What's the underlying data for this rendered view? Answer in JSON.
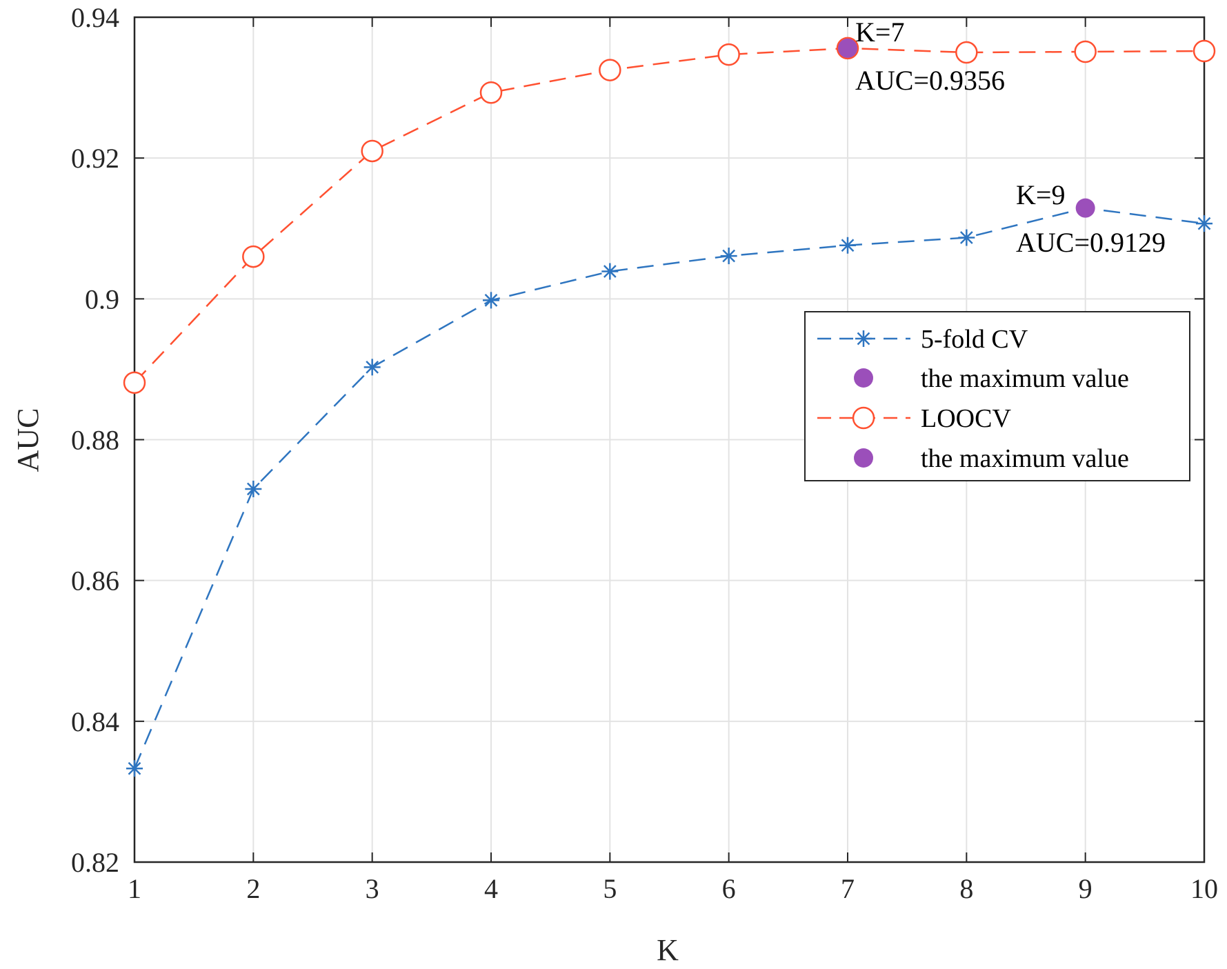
{
  "chart_data": {
    "type": "line",
    "title": "",
    "xlabel": "K",
    "ylabel": "AUC",
    "x": [
      1,
      2,
      3,
      4,
      5,
      6,
      7,
      8,
      9,
      10
    ],
    "xlim": [
      1,
      10
    ],
    "ylim": [
      0.82,
      0.94
    ],
    "xticks": [
      "1",
      "2",
      "3",
      "4",
      "5",
      "6",
      "7",
      "8",
      "9",
      "10"
    ],
    "yticks": [
      "0.82",
      "0.84",
      "0.86",
      "0.88",
      "0.9",
      "0.92",
      "0.94"
    ],
    "grid": true,
    "series": [
      {
        "name": "5-fold CV",
        "color": "#2e75c0",
        "marker": "asterisk",
        "line_style": "dashed",
        "values": [
          0.8333,
          0.873,
          0.8903,
          0.8998,
          0.9039,
          0.9061,
          0.9076,
          0.9087,
          0.9129,
          0.9107
        ]
      },
      {
        "name": "LOOCV",
        "color": "#ff5030",
        "marker": "circle-open",
        "line_style": "dashed",
        "values": [
          0.8881,
          0.906,
          0.921,
          0.9293,
          0.9325,
          0.9347,
          0.9356,
          0.935,
          0.9351,
          0.9352
        ]
      }
    ],
    "maxima": [
      {
        "series": "LOOCV",
        "x": 7,
        "y": 0.9356,
        "label_k": "K=7",
        "label_auc": "AUC=0.9356"
      },
      {
        "series": "5-fold CV",
        "x": 9,
        "y": 0.9129,
        "label_k": "K=9",
        "label_auc": "AUC=0.9129"
      }
    ],
    "max_marker_color": "#9b4fba",
    "legend": {
      "position": "right",
      "entries": [
        "5-fold CV",
        "the maximum value",
        "LOOCV",
        "the maximum value"
      ]
    }
  }
}
